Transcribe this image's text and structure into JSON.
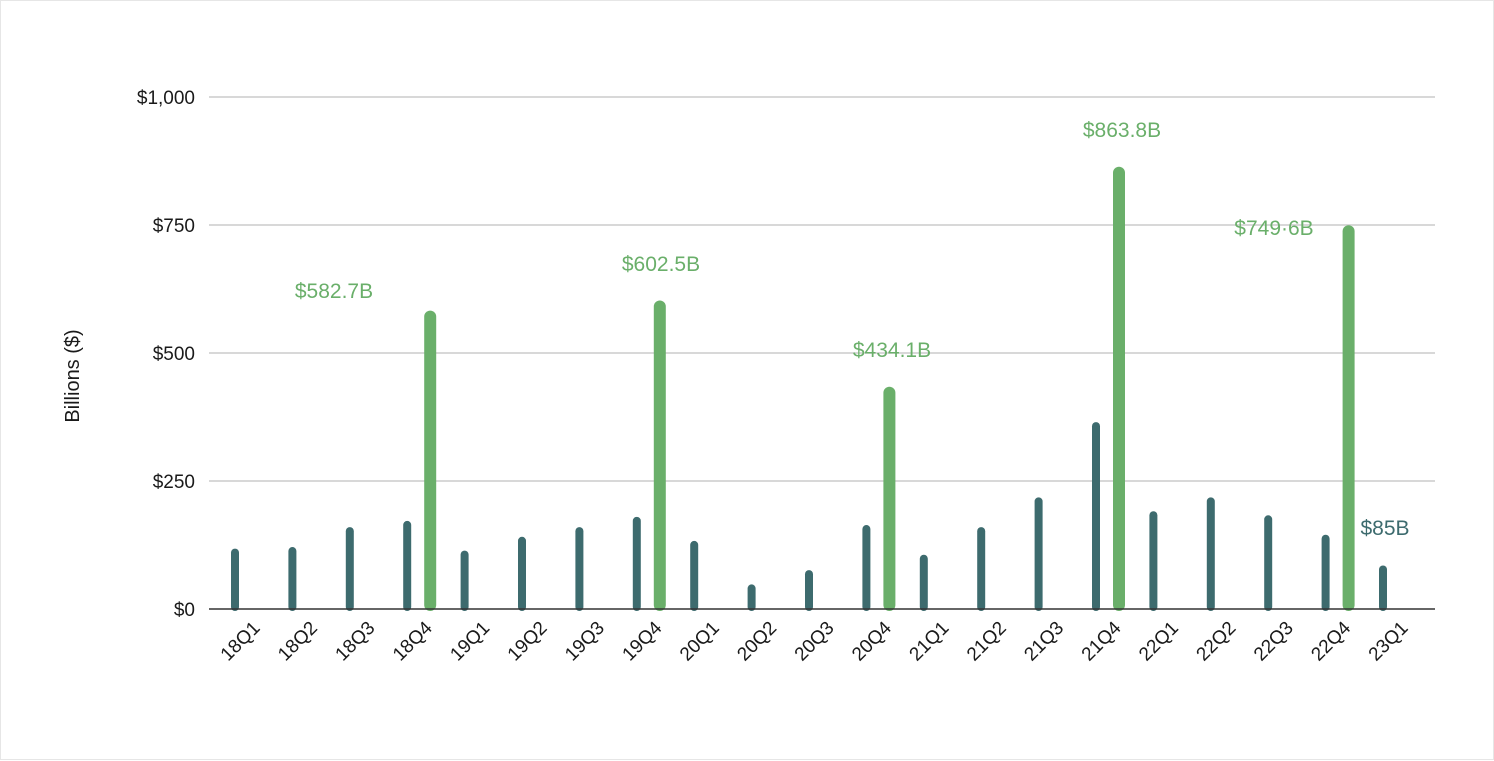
{
  "chart_data": {
    "type": "bar",
    "ylabel": "Billions ($)",
    "xlabel": "",
    "title": "",
    "ylim": [
      0,
      1000
    ],
    "yticks": [
      0,
      250,
      500,
      750,
      1000
    ],
    "ytick_labels": [
      "$0",
      "$250",
      "$500",
      "$750",
      "$1,000"
    ],
    "grid": true,
    "categories": [
      "18Q1",
      "18Q2",
      "18Q3",
      "18Q4",
      "19Q1",
      "19Q2",
      "19Q3",
      "19Q4",
      "20Q1",
      "20Q2",
      "20Q3",
      "20Q4",
      "21Q1",
      "21Q2",
      "21Q3",
      "21Q4",
      "22Q1",
      "22Q2",
      "22Q3",
      "22Q4",
      "23Q1"
    ],
    "series": [
      {
        "color": "#3d6b6e",
        "values": [
          118,
          121,
          160,
          172,
          114,
          141,
          160,
          180,
          133,
          48,
          76,
          164,
          106,
          160,
          218,
          365,
          191,
          218,
          183,
          145,
          85
        ]
      },
      {
        "color": "#6aaf6a",
        "values": [
          null,
          null,
          null,
          582.7,
          null,
          null,
          null,
          602.5,
          null,
          null,
          null,
          434.1,
          null,
          null,
          null,
          863.8,
          null,
          null,
          null,
          749.6,
          null
        ]
      }
    ],
    "data_labels": [
      {
        "text": "$582.7B",
        "category": "18Q4",
        "series": 1,
        "color": "#6aaf6a"
      },
      {
        "text": "$602.5B",
        "category": "19Q4",
        "series": 1,
        "color": "#6aaf6a"
      },
      {
        "text": "$434.1B",
        "category": "20Q4",
        "series": 1,
        "color": "#6aaf6a"
      },
      {
        "text": "$863.8B",
        "category": "21Q4",
        "series": 1,
        "color": "#6aaf6a"
      },
      {
        "text": "$749·6B",
        "category": "22Q4",
        "series": 1,
        "color": "#6aaf6a"
      },
      {
        "text": "$85B",
        "category": "23Q1",
        "series": 0,
        "color": "#3d6b6e"
      }
    ],
    "colors": {
      "gridline": "#cccccc",
      "axis": "#333333"
    }
  }
}
